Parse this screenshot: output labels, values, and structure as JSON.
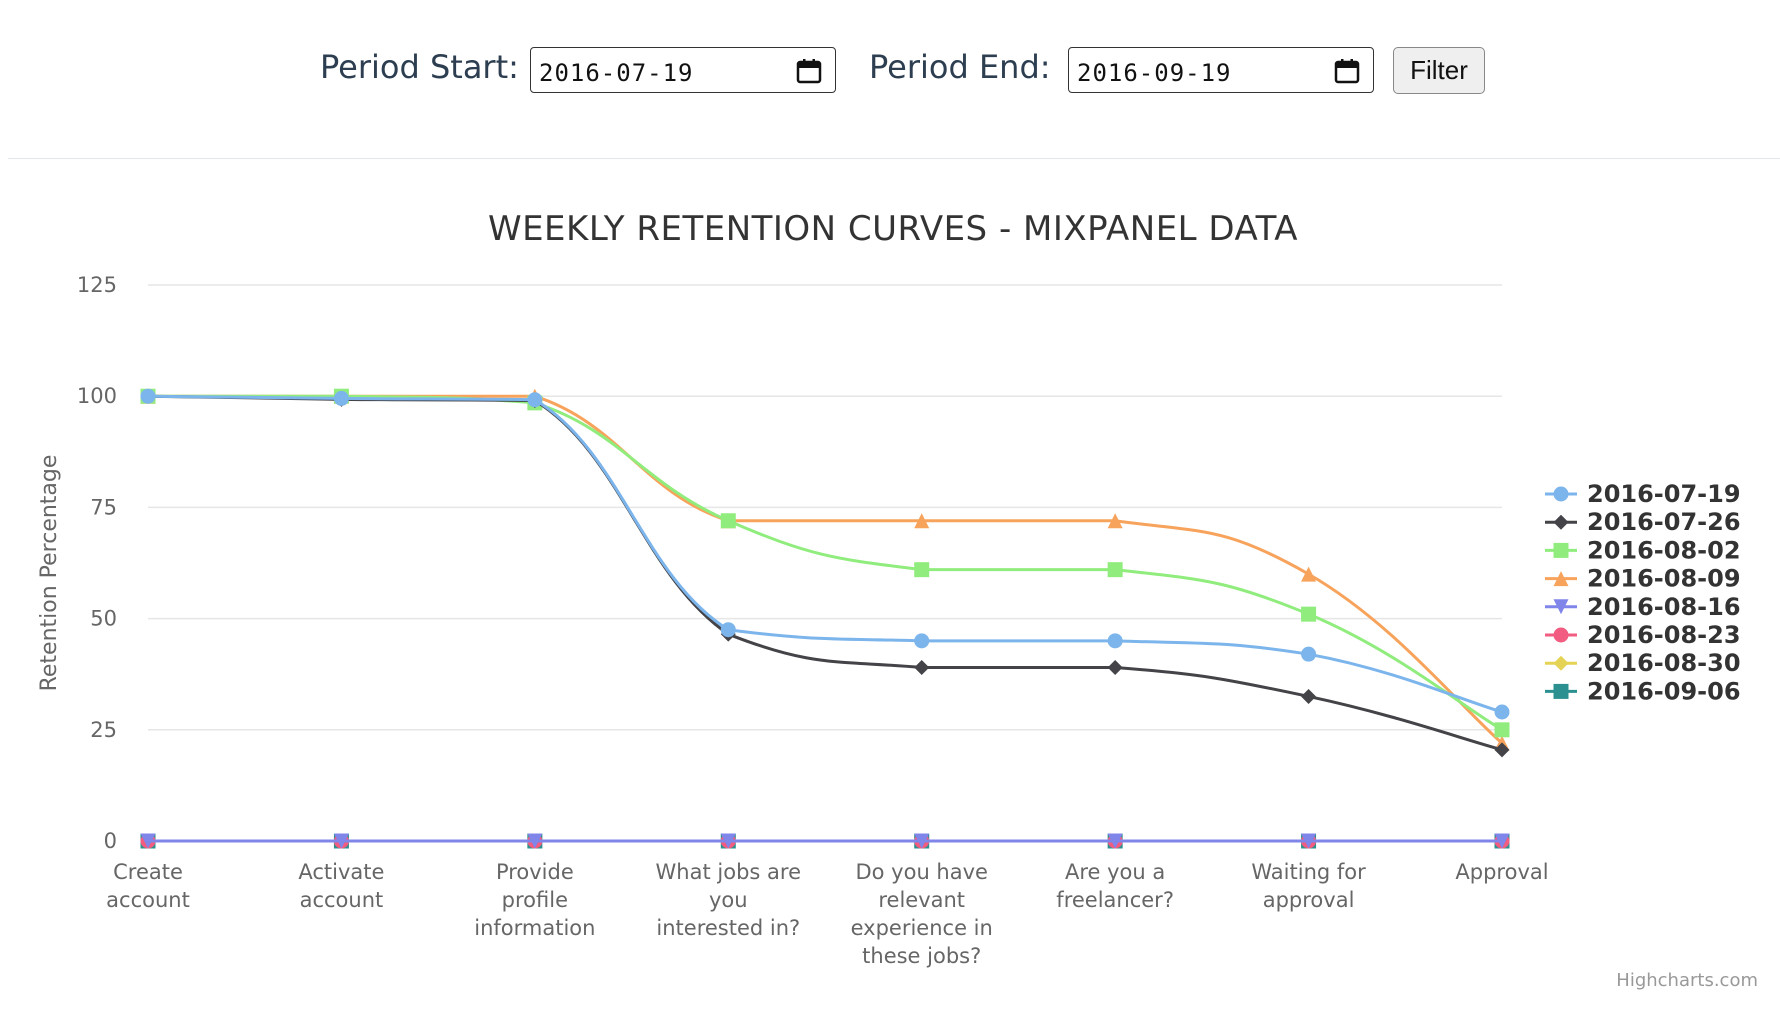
{
  "filters": {
    "start_label": "Period Start:",
    "start_value": "2016-07-19",
    "end_label": "Period End:",
    "end_value": "2016-09-19",
    "filter_button": "Filter",
    "calendar_icon": "calendar-icon"
  },
  "credits": "Highcharts.com",
  "chart_data": {
    "type": "line",
    "title": "WEEKLY RETENTION CURVES - MIXPANEL DATA",
    "xlabel": "",
    "ylabel": "Retention Percentage",
    "ylim": [
      0,
      125
    ],
    "yticks": [
      0,
      25,
      50,
      75,
      100,
      125
    ],
    "grid": true,
    "legend_position": "right",
    "categories": [
      [
        "Create",
        "account"
      ],
      [
        "Activate",
        "account"
      ],
      [
        "Provide",
        "profile",
        "information"
      ],
      [
        "What jobs are",
        "you",
        "interested in?"
      ],
      [
        "Do you have",
        "relevant",
        "experience in",
        "these jobs?"
      ],
      [
        "Are you a",
        "freelancer?"
      ],
      [
        "Waiting for",
        "approval"
      ],
      [
        "Approval"
      ]
    ],
    "series": [
      {
        "name": "2016-07-19",
        "color": "#7cb5ec",
        "marker": "circle",
        "values": [
          100,
          99.5,
          99.2,
          47.5,
          45,
          45,
          42,
          29
        ]
      },
      {
        "name": "2016-07-26",
        "color": "#434348",
        "marker": "diamond",
        "values": [
          100,
          99.3,
          99,
          46.5,
          39,
          39,
          32.5,
          20.5
        ]
      },
      {
        "name": "2016-08-02",
        "color": "#90ed7d",
        "marker": "square",
        "values": [
          100,
          100,
          98.5,
          72,
          61,
          61,
          51,
          25
        ]
      },
      {
        "name": "2016-08-09",
        "color": "#f7a35c",
        "marker": "triangle",
        "values": [
          100,
          100,
          100,
          72,
          72,
          72,
          60,
          22
        ]
      },
      {
        "name": "2016-08-16",
        "color": "#8085e9",
        "marker": "triangle-down",
        "values": [
          0,
          0,
          0,
          0,
          0,
          0,
          0,
          0
        ]
      },
      {
        "name": "2016-08-23",
        "color": "#f15c80",
        "marker": "circle",
        "values": [
          0,
          0,
          0,
          0,
          0,
          0,
          0,
          0
        ]
      },
      {
        "name": "2016-08-30",
        "color": "#e4d354",
        "marker": "diamond",
        "values": [
          0,
          0,
          0,
          0,
          0,
          0,
          0,
          0
        ]
      },
      {
        "name": "2016-09-06",
        "color": "#2b908f",
        "marker": "square",
        "values": [
          0,
          0,
          0,
          0,
          0,
          0,
          0,
          0
        ]
      }
    ]
  }
}
